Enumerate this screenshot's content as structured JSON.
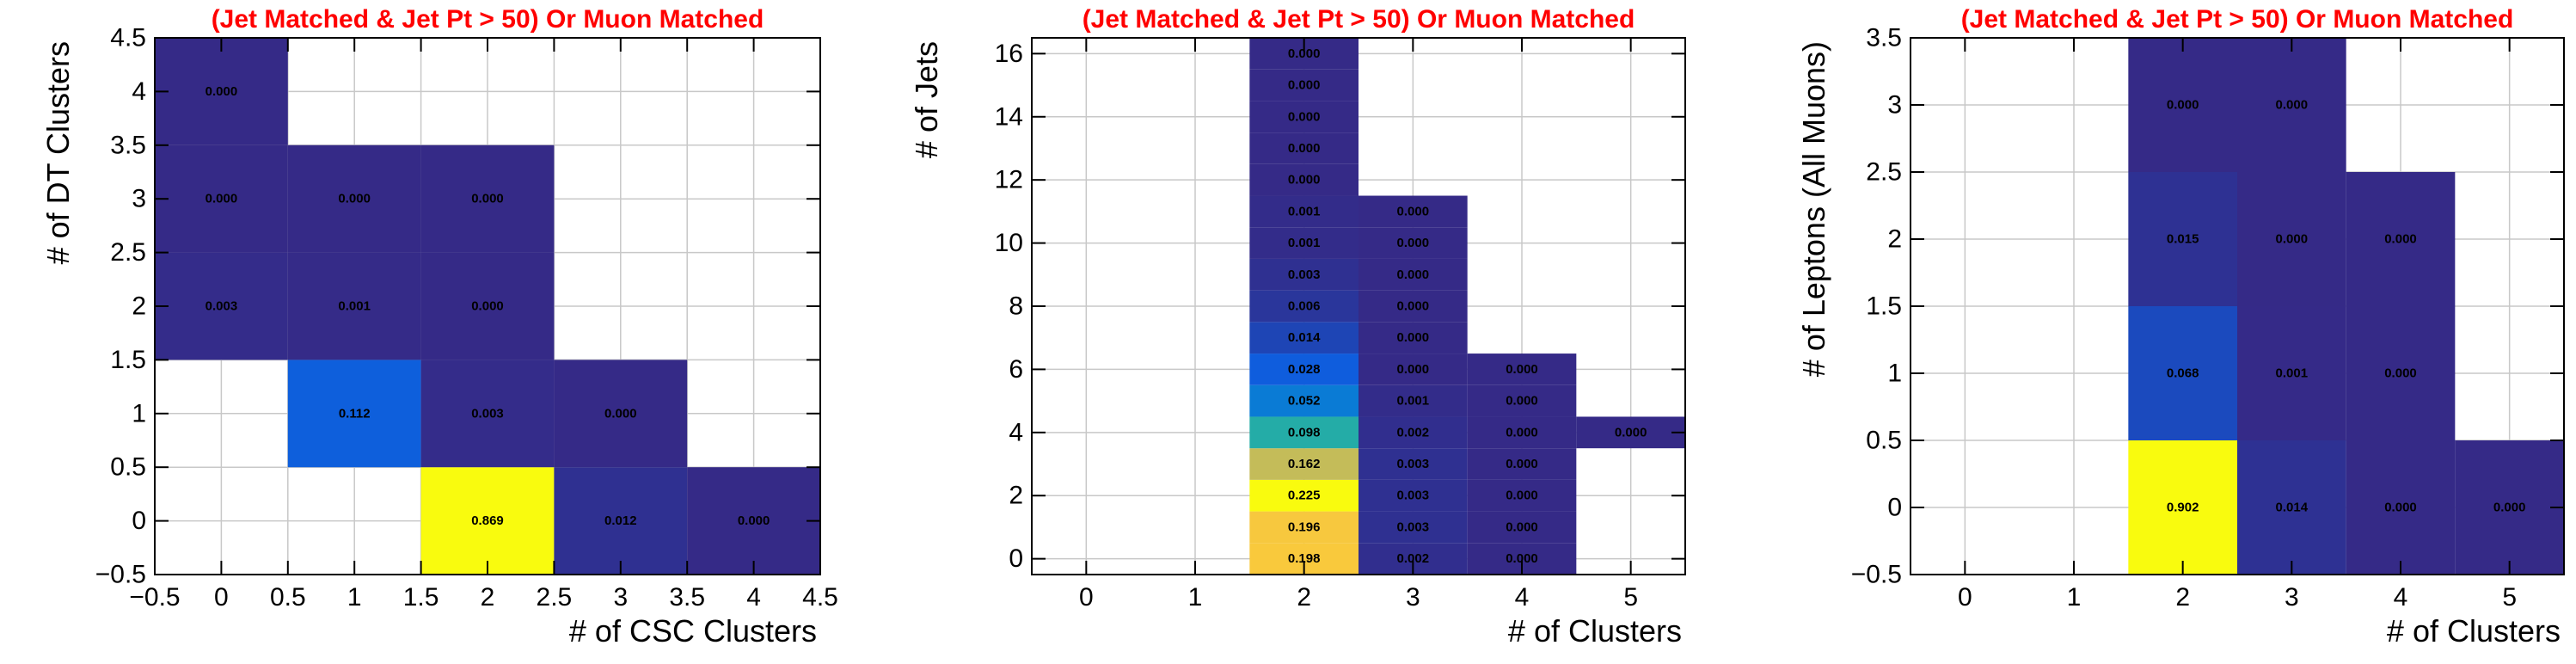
{
  "chart_data": [
    {
      "type": "heatmap",
      "title": "(Jet Matched & Jet Pt > 50) Or Muon Matched",
      "xlabel": "# of CSC Clusters",
      "ylabel": "# of DT Clusters",
      "xlim": [
        -0.5,
        4.5
      ],
      "ylim": [
        -0.5,
        4.5
      ],
      "x_ticks": [
        -0.5,
        0,
        0.5,
        1,
        1.5,
        2,
        2.5,
        3,
        3.5,
        4,
        4.5
      ],
      "y_ticks": [
        -0.5,
        0,
        0.5,
        1,
        1.5,
        2,
        2.5,
        3,
        3.5,
        4,
        4.5
      ],
      "x_tick_labels": [
        "−0.5",
        "0",
        "0.5",
        "1",
        "1.5",
        "2",
        "2.5",
        "3",
        "3.5",
        "4",
        "4.5"
      ],
      "y_tick_labels": [
        "−0.5",
        "0",
        "0.5",
        "1",
        "1.5",
        "2",
        "2.5",
        "3",
        "3.5",
        "4",
        "4.5"
      ],
      "grid": true,
      "cells": [
        {
          "x": 2,
          "y": 0,
          "value": 0.869,
          "label": "0.869"
        },
        {
          "x": 3,
          "y": 0,
          "value": 0.012,
          "label": "0.012"
        },
        {
          "x": 4,
          "y": 0,
          "value": 0.0,
          "label": "0.000"
        },
        {
          "x": 1,
          "y": 1,
          "value": 0.112,
          "label": "0.112"
        },
        {
          "x": 2,
          "y": 1,
          "value": 0.003,
          "label": "0.003"
        },
        {
          "x": 3,
          "y": 1,
          "value": 0.0,
          "label": "0.000"
        },
        {
          "x": 0,
          "y": 2,
          "value": 0.003,
          "label": "0.003"
        },
        {
          "x": 1,
          "y": 2,
          "value": 0.001,
          "label": "0.001"
        },
        {
          "x": 2,
          "y": 2,
          "value": 0.0,
          "label": "0.000"
        },
        {
          "x": 0,
          "y": 3,
          "value": 0.0,
          "label": "0.000"
        },
        {
          "x": 1,
          "y": 3,
          "value": 0.0,
          "label": "0.000"
        },
        {
          "x": 2,
          "y": 3,
          "value": 0.0,
          "label": "0.000"
        },
        {
          "x": 0,
          "y": 4,
          "value": 0.0,
          "label": "0.000"
        }
      ]
    },
    {
      "type": "heatmap",
      "title": "(Jet Matched & Jet Pt > 50) Or Muon Matched",
      "xlabel": "# of Clusters",
      "ylabel": "# of Jets",
      "xlim": [
        -0.5,
        5.5
      ],
      "ylim": [
        -0.5,
        16.5
      ],
      "x_ticks": [
        0,
        1,
        2,
        3,
        4,
        5
      ],
      "y_ticks": [
        0,
        2,
        4,
        6,
        8,
        10,
        12,
        14,
        16
      ],
      "x_tick_labels": [
        "0",
        "1",
        "2",
        "3",
        "4",
        "5"
      ],
      "y_tick_labels": [
        "0",
        "2",
        "4",
        "6",
        "8",
        "10",
        "12",
        "14",
        "16"
      ],
      "grid": true,
      "cells": [
        {
          "x": 2,
          "y": 0,
          "value": 0.198,
          "label": "0.198"
        },
        {
          "x": 2,
          "y": 1,
          "value": 0.196,
          "label": "0.196"
        },
        {
          "x": 2,
          "y": 2,
          "value": 0.225,
          "label": "0.225"
        },
        {
          "x": 2,
          "y": 3,
          "value": 0.162,
          "label": "0.162"
        },
        {
          "x": 2,
          "y": 4,
          "value": 0.098,
          "label": "0.098"
        },
        {
          "x": 2,
          "y": 5,
          "value": 0.052,
          "label": "0.052"
        },
        {
          "x": 2,
          "y": 6,
          "value": 0.028,
          "label": "0.028"
        },
        {
          "x": 2,
          "y": 7,
          "value": 0.014,
          "label": "0.014"
        },
        {
          "x": 2,
          "y": 8,
          "value": 0.006,
          "label": "0.006"
        },
        {
          "x": 2,
          "y": 9,
          "value": 0.003,
          "label": "0.003"
        },
        {
          "x": 2,
          "y": 10,
          "value": 0.001,
          "label": "0.001"
        },
        {
          "x": 2,
          "y": 11,
          "value": 0.001,
          "label": "0.001"
        },
        {
          "x": 2,
          "y": 12,
          "value": 0.0,
          "label": "0.000"
        },
        {
          "x": 2,
          "y": 13,
          "value": 0.0,
          "label": "0.000"
        },
        {
          "x": 2,
          "y": 14,
          "value": 0.0,
          "label": "0.000"
        },
        {
          "x": 2,
          "y": 15,
          "value": 0.0,
          "label": "0.000"
        },
        {
          "x": 2,
          "y": 16,
          "value": 0.0,
          "label": "0.000"
        },
        {
          "x": 3,
          "y": 0,
          "value": 0.002,
          "label": "0.002"
        },
        {
          "x": 3,
          "y": 1,
          "value": 0.003,
          "label": "0.003"
        },
        {
          "x": 3,
          "y": 2,
          "value": 0.003,
          "label": "0.003"
        },
        {
          "x": 3,
          "y": 3,
          "value": 0.003,
          "label": "0.003"
        },
        {
          "x": 3,
          "y": 4,
          "value": 0.002,
          "label": "0.002"
        },
        {
          "x": 3,
          "y": 5,
          "value": 0.001,
          "label": "0.001"
        },
        {
          "x": 3,
          "y": 6,
          "value": 0.0,
          "label": "0.000"
        },
        {
          "x": 3,
          "y": 7,
          "value": 0.0,
          "label": "0.000"
        },
        {
          "x": 3,
          "y": 8,
          "value": 0.0,
          "label": "0.000"
        },
        {
          "x": 3,
          "y": 9,
          "value": 0.0,
          "label": "0.000"
        },
        {
          "x": 3,
          "y": 10,
          "value": 0.0,
          "label": "0.000"
        },
        {
          "x": 3,
          "y": 11,
          "value": 0.0,
          "label": "0.000"
        },
        {
          "x": 4,
          "y": 0,
          "value": 0.0,
          "label": "0.000"
        },
        {
          "x": 4,
          "y": 1,
          "value": 0.0,
          "label": "0.000"
        },
        {
          "x": 4,
          "y": 2,
          "value": 0.0,
          "label": "0.000"
        },
        {
          "x": 4,
          "y": 3,
          "value": 0.0,
          "label": "0.000"
        },
        {
          "x": 4,
          "y": 4,
          "value": 0.0,
          "label": "0.000"
        },
        {
          "x": 4,
          "y": 5,
          "value": 0.0,
          "label": "0.000"
        },
        {
          "x": 4,
          "y": 6,
          "value": 0.0,
          "label": "0.000"
        },
        {
          "x": 5,
          "y": 4,
          "value": 0.0,
          "label": "0.000"
        }
      ]
    },
    {
      "type": "heatmap",
      "title": "(Jet Matched & Jet Pt > 50) Or Muon Matched",
      "xlabel": "# of Clusters",
      "ylabel": "# of Leptons (All Muons)",
      "xlim": [
        -0.5,
        5.5
      ],
      "ylim": [
        -0.5,
        3.5
      ],
      "x_ticks": [
        0,
        1,
        2,
        3,
        4,
        5
      ],
      "y_ticks": [
        -0.5,
        0,
        0.5,
        1,
        1.5,
        2,
        2.5,
        3,
        3.5
      ],
      "x_tick_labels": [
        "0",
        "1",
        "2",
        "3",
        "4",
        "5"
      ],
      "y_tick_labels": [
        "−0.5",
        "0",
        "0.5",
        "1",
        "1.5",
        "2",
        "2.5",
        "3",
        "3.5"
      ],
      "grid": true,
      "cells": [
        {
          "x": 2,
          "y": 0,
          "value": 0.902,
          "label": "0.902"
        },
        {
          "x": 3,
          "y": 0,
          "value": 0.014,
          "label": "0.014"
        },
        {
          "x": 4,
          "y": 0,
          "value": 0.0,
          "label": "0.000"
        },
        {
          "x": 5,
          "y": 0,
          "value": 0.0,
          "label": "0.000"
        },
        {
          "x": 2,
          "y": 1,
          "value": 0.068,
          "label": "0.068"
        },
        {
          "x": 3,
          "y": 1,
          "value": 0.001,
          "label": "0.001"
        },
        {
          "x": 4,
          "y": 1,
          "value": 0.0,
          "label": "0.000"
        },
        {
          "x": 2,
          "y": 2,
          "value": 0.015,
          "label": "0.015"
        },
        {
          "x": 3,
          "y": 2,
          "value": 0.0,
          "label": "0.000"
        },
        {
          "x": 4,
          "y": 2,
          "value": 0.0,
          "label": "0.000"
        },
        {
          "x": 2,
          "y": 3,
          "value": 0.0,
          "label": "0.000"
        },
        {
          "x": 3,
          "y": 3,
          "value": 0.0,
          "label": "0.000"
        }
      ]
    }
  ]
}
